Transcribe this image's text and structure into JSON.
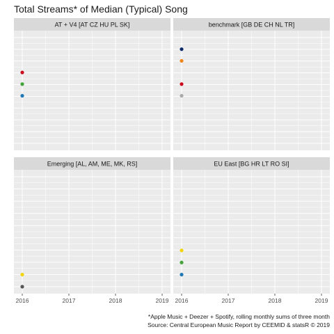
{
  "chart_data": {
    "type": "scatter",
    "title": "Total Streams* of Median (Typical) Song",
    "caption": [
      "*Apple Music + Deezer + Spotify, rolling monthly sums of three month",
      "Source: Central European Music Report by CEEMID & statsR © 2019"
    ],
    "x_ticks": [
      "2016",
      "2017",
      "2018",
      "2019"
    ],
    "xlim": [
      2016,
      2019
    ],
    "grid": true,
    "legend": "none",
    "facets": [
      {
        "label": "AT + V4 [AT CZ HU PL SK]",
        "points": [
          {
            "x": 2016,
            "y": 0.67,
            "color": "#cc0a1e"
          },
          {
            "x": 2016,
            "y": 0.56,
            "color": "#44a43b"
          },
          {
            "x": 2016,
            "y": 0.45,
            "color": "#1f78b4"
          }
        ]
      },
      {
        "label": "benchmark [GB DE CH NL TR]",
        "points": [
          {
            "x": 2016,
            "y": 0.89,
            "color": "#0d2b6b"
          },
          {
            "x": 2016,
            "y": 0.78,
            "color": "#f0861a"
          },
          {
            "x": 2016,
            "y": 0.56,
            "color": "#cc0a1e"
          },
          {
            "x": 2016,
            "y": 0.45,
            "color": "#aaaaaa"
          }
        ]
      },
      {
        "label": "Emerging [AL, AM, ME, MK, RS]",
        "points": [
          {
            "x": 2016,
            "y": 0.11,
            "color": "#f2d40f"
          },
          {
            "x": 2016,
            "y": 0.0,
            "color": "#555555"
          }
        ]
      },
      {
        "label": "EU East [BG HR LT RO SI]",
        "points": [
          {
            "x": 2016,
            "y": 0.33,
            "color": "#f2d40f"
          },
          {
            "x": 2016,
            "y": 0.22,
            "color": "#44a43b"
          },
          {
            "x": 2016,
            "y": 0.11,
            "color": "#1f78b4"
          }
        ]
      }
    ]
  },
  "colors": {
    "panel_bg": "#ebebeb",
    "strip_bg": "#d9d9d9",
    "grid_major": "#ffffff"
  }
}
